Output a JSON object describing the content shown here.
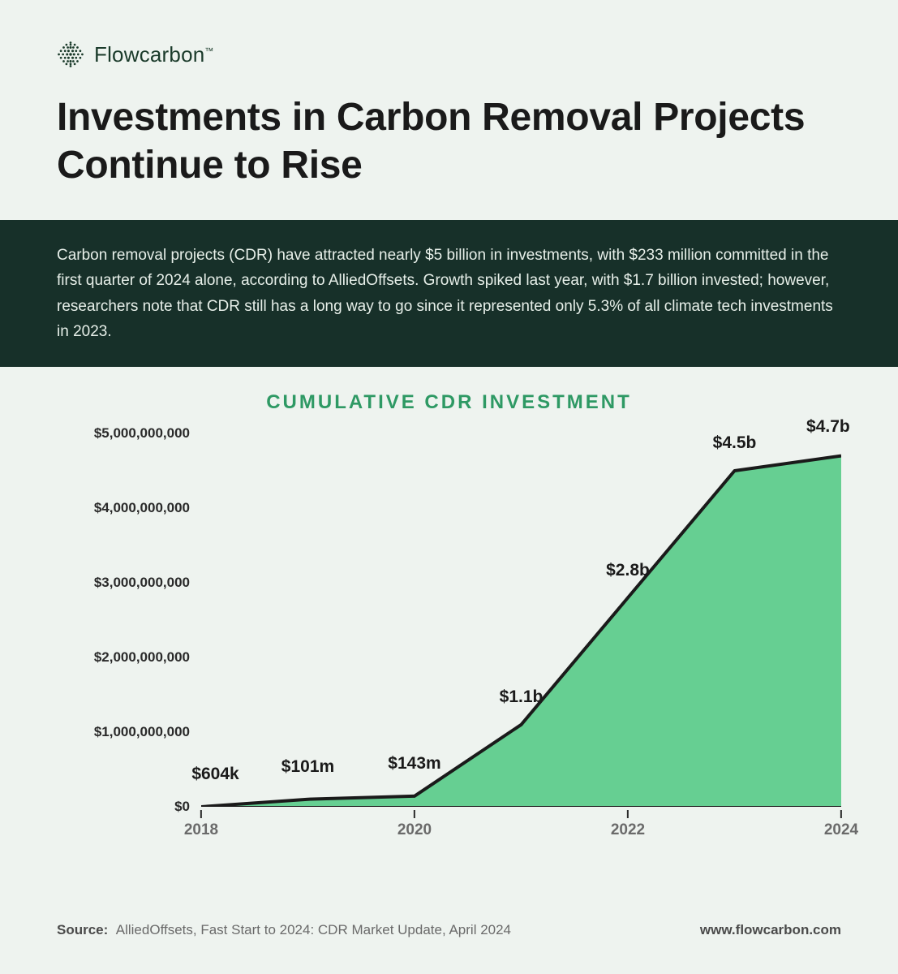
{
  "brand": {
    "name": "Flowcarbon",
    "tm": "™",
    "logo_dot_color": "#1a3a2a"
  },
  "title": "Investments in Carbon Removal Projects Continue to Rise",
  "banner_text": "Carbon removal projects (CDR) have attracted nearly $5 billion in investments, with $233 million committed in the first quarter of 2024 alone, according to AlliedOffsets. Growth spiked last year, with $1.7 billion invested; however, researchers note that CDR still has a long way to go since it represented only 5.3% of all climate tech investments in 2023.",
  "chart": {
    "type": "area",
    "title": "CUMULATIVE CDR INVESTMENT",
    "title_color": "#2e9964",
    "background_color": "#eef3ef",
    "area_fill": "#66cf92",
    "line_color": "#1a1a1a",
    "line_width": 4,
    "tick_color": "#2a2a2a",
    "y_label_color": "#2a2a2a",
    "x_label_color": "#6a6a6a",
    "label_fontsize": 17,
    "point_label_fontsize": 21,
    "ylim": [
      0,
      5000000000
    ],
    "y_ticks": [
      {
        "v": 0,
        "label": "$0"
      },
      {
        "v": 1000000000,
        "label": "$1,000,000,000"
      },
      {
        "v": 2000000000,
        "label": "$2,000,000,000"
      },
      {
        "v": 3000000000,
        "label": "$3,000,000,000"
      },
      {
        "v": 4000000000,
        "label": "$4,000,000,000"
      },
      {
        "v": 5000000000,
        "label": "$5,000,000,000"
      }
    ],
    "x_ticks": [
      {
        "year": 2018,
        "label": "2018"
      },
      {
        "year": 2020,
        "label": "2020"
      },
      {
        "year": 2022,
        "label": "2022"
      },
      {
        "year": 2024,
        "label": "2024"
      }
    ],
    "xlim": [
      2018,
      2024
    ],
    "points": [
      {
        "year": 2018,
        "value": 604000,
        "label": "$604k",
        "label_dy": -28
      },
      {
        "year": 2019,
        "value": 101000000,
        "label": "$101m",
        "label_dy": -28
      },
      {
        "year": 2020,
        "value": 143000000,
        "label": "$143m",
        "label_dy": -28
      },
      {
        "year": 2021,
        "value": 1100000000,
        "label": "$1.1b",
        "label_dy": -22
      },
      {
        "year": 2022,
        "value": 2800000000,
        "label": "$2.8b",
        "label_dy": -22
      },
      {
        "year": 2023,
        "value": 4500000000,
        "label": "$4.5b",
        "label_dy": -22
      },
      {
        "year": 2024,
        "value": 4700000000,
        "label": "$4.7b",
        "label_dy": -24
      }
    ]
  },
  "footer": {
    "source_label": "Source:",
    "source_text": "AlliedOffsets, Fast Start to 2024: CDR Market Update, April 2024",
    "site": "www.flowcarbon.com"
  },
  "colors": {
    "page_bg": "#eef3ef",
    "banner_bg": "#173029",
    "banner_fg": "#e7efe9",
    "title_fg": "#1a1a1a"
  }
}
